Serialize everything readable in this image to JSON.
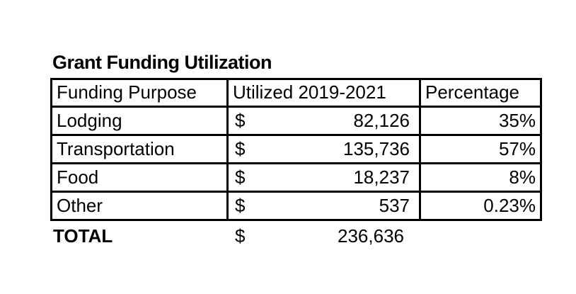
{
  "title": "Grant Funding Utilization",
  "table": {
    "headers": [
      "Funding Purpose",
      "Utilized 2019-2021",
      "Percentage"
    ],
    "currency_symbol": "$",
    "rows": [
      {
        "purpose": "Lodging",
        "amount": "82,126",
        "percentage": "35%"
      },
      {
        "purpose": "Transportation",
        "amount": "135,736",
        "percentage": "57%"
      },
      {
        "purpose": "Food",
        "amount": "18,237",
        "percentage": "8%"
      },
      {
        "purpose": "Other",
        "amount": "537",
        "percentage": "0.23%"
      }
    ],
    "total": {
      "label": "TOTAL",
      "amount": "236,636",
      "percentage": ""
    }
  },
  "colors": {
    "background": "#ffffff",
    "text": "#000000",
    "border": "#000000"
  },
  "chart_data": {
    "type": "table",
    "title": "Grant Funding Utilization",
    "columns": [
      "Funding Purpose",
      "Utilized 2019-2021",
      "Percentage"
    ],
    "rows": [
      {
        "funding_purpose": "Lodging",
        "utilized_2019_2021": 82126,
        "percentage": "35%"
      },
      {
        "funding_purpose": "Transportation",
        "utilized_2019_2021": 135736,
        "percentage": "57%"
      },
      {
        "funding_purpose": "Food",
        "utilized_2019_2021": 18237,
        "percentage": "8%"
      },
      {
        "funding_purpose": "Other",
        "utilized_2019_2021": 537,
        "percentage": "0.23%"
      }
    ],
    "total": {
      "funding_purpose": "TOTAL",
      "utilized_2019_2021": 236636
    },
    "currency_symbol": "$",
    "layout": "bordered table, amounts in accounting format ($ left, value right-aligned), percentages right-aligned, total row outside borders"
  }
}
